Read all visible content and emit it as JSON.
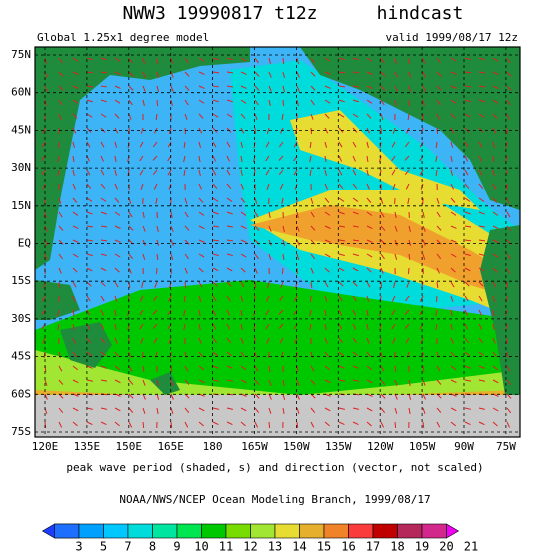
{
  "header": {
    "title": "NWW3 19990817 t12z",
    "tag": "hindcast",
    "model": "Global 1.25x1 degree model",
    "valid": "valid 1999/08/17 12z"
  },
  "map": {
    "lat_labels": [
      "75N",
      "60N",
      "45N",
      "30N",
      "15N",
      "EQ",
      "15S",
      "30S",
      "45S",
      "60S",
      "75S"
    ],
    "lon_labels": [
      "120E",
      "135E",
      "150E",
      "165E",
      "180",
      "165W",
      "150W",
      "135W",
      "120W",
      "105W",
      "90W",
      "75W"
    ]
  },
  "caption": "peak wave period (shaded, s) and direction (vector, not scaled)",
  "credit": "NOAA/NWS/NCEP Ocean Modeling Branch, 1999/08/17",
  "colorbar": {
    "labels": [
      3,
      5,
      7,
      8,
      9,
      10,
      11,
      12,
      13,
      14,
      15,
      16,
      17,
      18,
      19,
      20,
      21
    ],
    "colors": [
      "#1e3cff",
      "#1e6eff",
      "#00a0ff",
      "#00c8ff",
      "#00dcdc",
      "#00e6a0",
      "#00e650",
      "#00c800",
      "#78dc00",
      "#a0e632",
      "#e6dc32",
      "#e6af2d",
      "#f08228",
      "#fa3c3c",
      "#c00000",
      "#b4285a",
      "#d2288c",
      "#f000f0"
    ]
  }
}
